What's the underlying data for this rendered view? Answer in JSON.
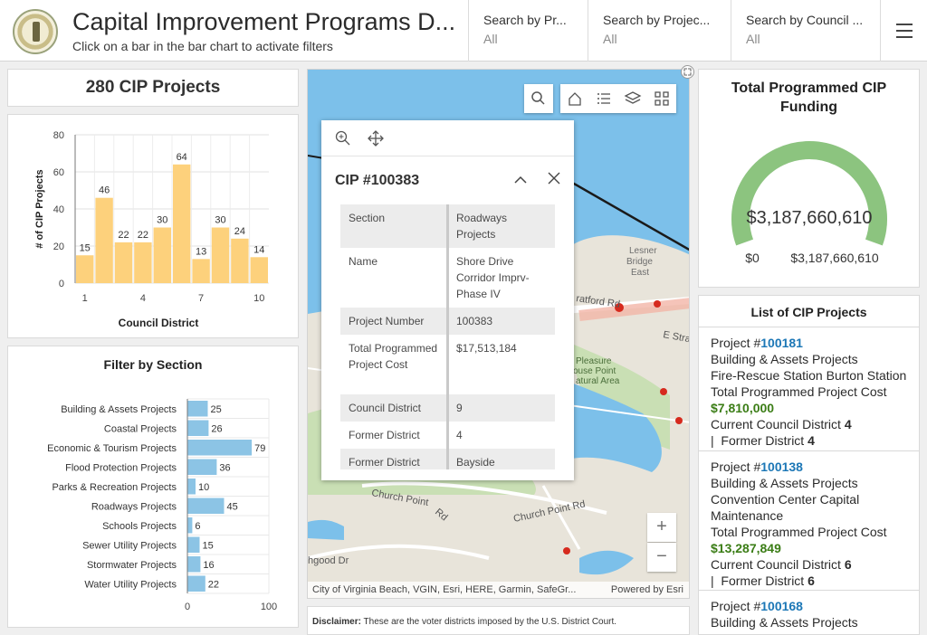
{
  "header": {
    "title": "Capital Improvement Programs D...",
    "subtitle": "Click on a bar in the bar chart to activate filters",
    "filters": [
      {
        "label": "Search by Pr...",
        "value": "All"
      },
      {
        "label": "Search by Projec...",
        "value": "All"
      },
      {
        "label": "Search by Council ...",
        "value": "All"
      }
    ]
  },
  "summary": {
    "count_text": "280 CIP Projects"
  },
  "district_chart": {
    "chart_data": {
      "type": "bar",
      "categories": [
        "1",
        "2",
        "3",
        "4",
        "5",
        "6",
        "7",
        "8",
        "9",
        "10"
      ],
      "values": [
        15,
        46,
        22,
        22,
        30,
        64,
        13,
        30,
        24,
        14
      ],
      "xlabel": "Council District",
      "ylabel": "# of CIP Projects",
      "ylim": [
        0,
        80
      ],
      "yticks": [
        0,
        20,
        40,
        60,
        80
      ],
      "xticks": [
        "1",
        "4",
        "7",
        "10"
      ],
      "bar_color": "#fdd17c",
      "grid": true
    }
  },
  "section_chart": {
    "title": "Filter by Section",
    "chart_data": {
      "type": "bar",
      "orientation": "horizontal",
      "categories": [
        "Building & Assets Projects",
        "Coastal Projects",
        "Economic & Tourism Projects",
        "Flood Protection Projects",
        "Parks & Recreation Projects",
        "Roadways Projects",
        "Schools Projects",
        "Sewer Utility Projects",
        "Stormwater Projects",
        "Water Utility Projects"
      ],
      "values": [
        25,
        26,
        79,
        36,
        10,
        45,
        6,
        15,
        16,
        22
      ],
      "xlim": [
        0,
        100
      ],
      "xticks": [
        "0",
        "100"
      ],
      "bar_color": "#8cc4e5",
      "grid": true
    }
  },
  "map": {
    "attribution": "City of Virginia Beach, VGIN, Esri, HERE, Garmin, SafeGr...",
    "powered_by": "Powered by Esri",
    "labels": [
      "Lesner",
      "Bridge",
      "East",
      "ratford Rd",
      "E Stra",
      "Pleasure",
      "ouse Point",
      "atural Area",
      "Church Point",
      "Rd",
      "Church Point Rd",
      "hgood Dr"
    ],
    "zoom_in": "+",
    "zoom_out": "−",
    "popup": {
      "title": "CIP #100383",
      "rows": [
        {
          "key": "Section",
          "value": "Roadways Projects"
        },
        {
          "key": "Name",
          "value": "Shore Drive Corridor Imprv-Phase IV"
        },
        {
          "key": "Project Number",
          "value": "100383"
        },
        {
          "key": "Total Programmed Project Cost",
          "value": "$17,513,184"
        },
        {
          "key": "Council District",
          "value": "9"
        },
        {
          "key": "Former District",
          "value": "4"
        },
        {
          "key": "Former District",
          "value": "Bayside"
        }
      ]
    }
  },
  "disclaimer": {
    "label": "Disclaimer:",
    "text": " These are the voter districts imposed by the U.S. District Court."
  },
  "gauge": {
    "title_line1": "Total Programmed CIP",
    "title_line2": "Funding",
    "value": 3187660610,
    "value_text": "$3,187,660,610",
    "min_label": "$0",
    "max_label": "$3,187,660,610",
    "fill_fraction": 1.0,
    "color": "#8cc47f"
  },
  "project_list": {
    "title": "List of CIP Projects",
    "items": [
      {
        "project_label": "Project #",
        "id": "100181",
        "section": "Building & Assets Projects",
        "name": "Fire-Rescue Station Burton Station",
        "cost_label": "Total Programmed Project Cost",
        "cost": "$7,810,000",
        "district_label": "Current Council District",
        "district": "4",
        "former_label": "Former District",
        "former": "4"
      },
      {
        "project_label": "Project #",
        "id": "100138",
        "section": "Building & Assets Projects",
        "name": "Convention Center Capital Maintenance",
        "cost_label": "Total Programmed Project Cost",
        "cost": "$13,287,849",
        "district_label": "Current Council District",
        "district": "6",
        "former_label": "Former District",
        "former": "6"
      },
      {
        "project_label": "Project #",
        "id": "100168",
        "section": "Building & Assets Projects"
      }
    ]
  }
}
